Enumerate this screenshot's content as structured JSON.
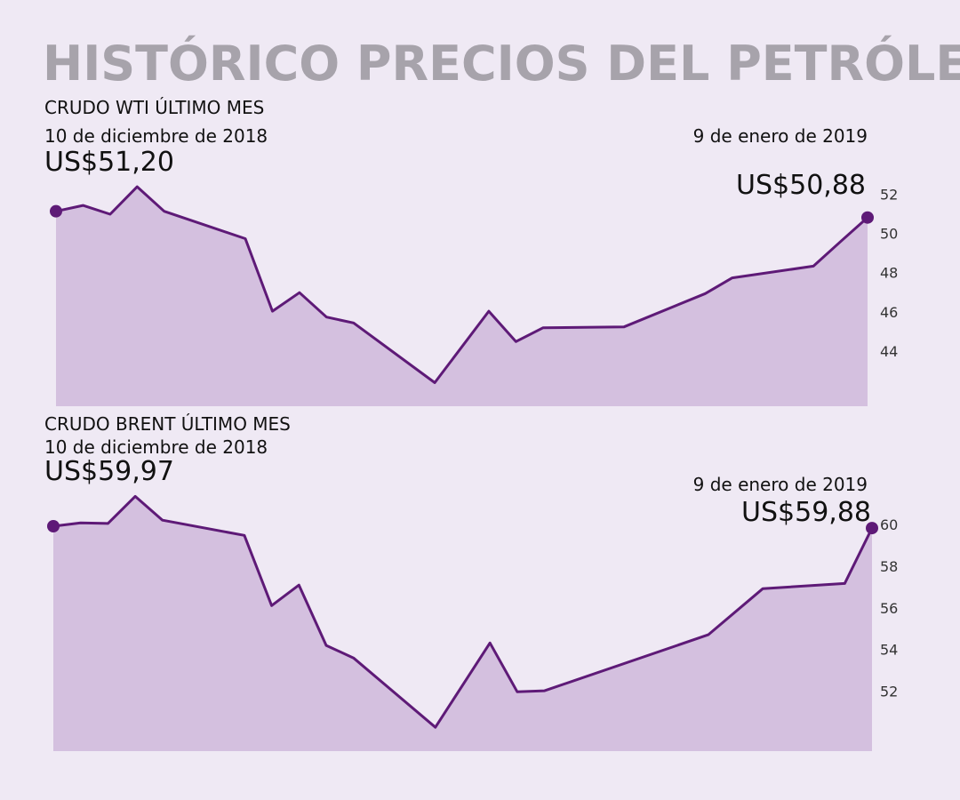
{
  "title": "HISTÓRICO PRECIOS DEL PETRÓLEO",
  "chart_data": [
    {
      "type": "area",
      "title": "CRUDO WTI ÚLTIMO MES",
      "x": [
        "2018-12-10",
        "2018-12-11",
        "2018-12-12",
        "2018-12-13",
        "2018-12-14",
        "2018-12-17",
        "2018-12-18",
        "2018-12-19",
        "2018-12-20",
        "2018-12-21",
        "2018-12-24",
        "2018-12-26",
        "2018-12-27",
        "2018-12-28",
        "2018-12-31",
        "2019-01-03",
        "2019-01-04",
        "2019-01-07",
        "2019-01-08",
        "2019-01-09"
      ],
      "values": [
        51.2,
        51.5,
        51.05,
        52.45,
        51.2,
        49.8,
        46.1,
        47.05,
        45.8,
        45.5,
        42.45,
        46.1,
        44.55,
        45.25,
        45.3,
        47.0,
        47.8,
        48.4,
        49.65,
        50.88
      ],
      "value_labels": [
        "US$51,20",
        null,
        null,
        null,
        null,
        null,
        null,
        null,
        null,
        null,
        null,
        null,
        null,
        null,
        null,
        null,
        null,
        null,
        null,
        "US$50,88"
      ],
      "date_labels": [
        "10 de diciembre de 2018",
        "9 de enero de 2019"
      ],
      "xlim": [
        "2018-12-10",
        "2019-01-09"
      ],
      "ylim": [
        41.25,
        53
      ],
      "yticks": [
        44,
        46,
        48,
        50,
        52
      ],
      "color": "#5e1a77",
      "fill": "#d4c0df",
      "grid": false
    },
    {
      "type": "area",
      "title": "CRUDO BRENT ÚLTIMO MES",
      "x": [
        "2018-12-10",
        "2018-12-11",
        "2018-12-12",
        "2018-12-13",
        "2018-12-14",
        "2018-12-17",
        "2018-12-18",
        "2018-12-19",
        "2018-12-20",
        "2018-12-21",
        "2018-12-24",
        "2018-12-26",
        "2018-12-27",
        "2018-12-28",
        "2019-01-03",
        "2019-01-05",
        "2019-01-08",
        "2019-01-09"
      ],
      "values": [
        59.97,
        60.13,
        60.1,
        61.4,
        60.26,
        59.53,
        56.17,
        57.15,
        54.26,
        53.66,
        50.34,
        54.38,
        52.04,
        52.09,
        54.77,
        56.98,
        57.23,
        59.88
      ],
      "value_labels": [
        "US$59,97",
        null,
        null,
        null,
        null,
        null,
        null,
        null,
        null,
        null,
        null,
        null,
        null,
        null,
        null,
        null,
        null,
        "US$59,88"
      ],
      "date_labels": [
        "10 de diciembre de 2018",
        "9 de enero de 2019"
      ],
      "xlim": [
        "2018-12-10",
        "2019-01-09"
      ],
      "ylim": [
        49.2,
        61.8
      ],
      "yticks": [
        52,
        54,
        56,
        58,
        60
      ],
      "color": "#5e1a77",
      "fill": "#d4c0df",
      "grid": false
    }
  ]
}
